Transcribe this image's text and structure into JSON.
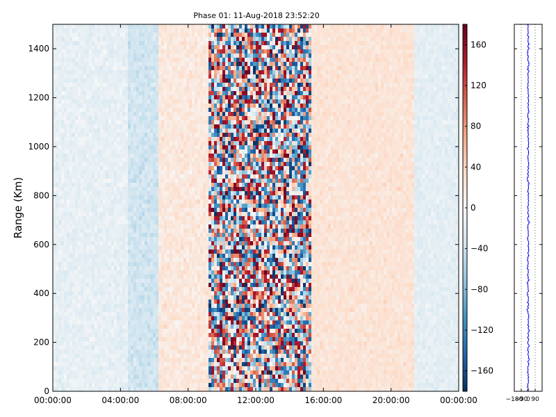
{
  "chart_data": [
    {
      "type": "heatmap",
      "title": "Phase 01: 11-Aug-2018 23:52:20",
      "ylabel": "Range (Km)",
      "xlabel": "",
      "x_ticks": [
        "00:00:00",
        "04:00:00",
        "08:00:00",
        "12:00:00",
        "16:00:00",
        "20:00:00",
        "00:00:00"
      ],
      "x_range_hours": [
        0,
        24
      ],
      "y_ticks": [
        0,
        200,
        400,
        600,
        800,
        1000,
        1200,
        1400
      ],
      "ylim": [
        0,
        1500
      ],
      "colormap": "RdBu_r",
      "colorbar": {
        "range": [
          -180,
          180
        ],
        "ticks": [
          -160,
          -120,
          -80,
          -40,
          0,
          40,
          80,
          120,
          160
        ]
      },
      "bands": [
        {
          "start_hour": 0.0,
          "end_hour": 4.5,
          "mean_phase": -15,
          "spread": 18
        },
        {
          "start_hour": 4.5,
          "end_hour": 6.3,
          "mean_phase": -35,
          "spread": 20
        },
        {
          "start_hour": 6.3,
          "end_hour": 9.2,
          "mean_phase": 20,
          "spread": 22
        },
        {
          "start_hour": 9.2,
          "end_hour": 15.3,
          "mean_phase": 0,
          "spread": 150
        },
        {
          "start_hour": 15.3,
          "end_hour": 21.3,
          "mean_phase": 25,
          "spread": 18
        },
        {
          "start_hour": 21.3,
          "end_hour": 24.0,
          "mean_phase": -18,
          "spread": 16
        }
      ]
    },
    {
      "type": "line",
      "x_ticks": [
        -180,
        -90,
        0,
        90
      ],
      "x_tick_labels": [
        "−180",
        "−90",
        "0",
        "90"
      ],
      "xlim": [
        -180,
        180
      ],
      "ylim": [
        0,
        1500
      ],
      "series_color": "#0000ff",
      "mean_phase": 0,
      "spread": 12
    }
  ]
}
